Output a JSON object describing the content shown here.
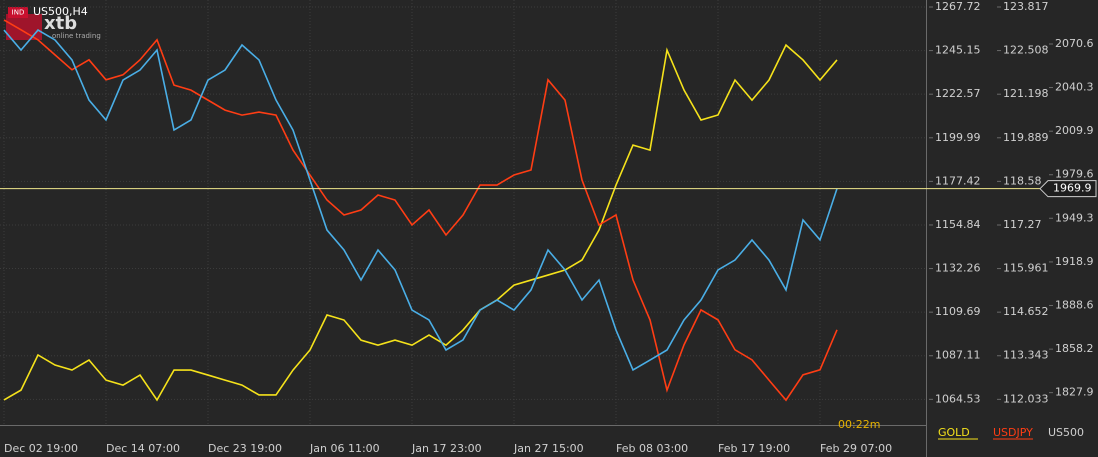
{
  "chart_data": {
    "type": "line",
    "title": "US500,H4",
    "badge": "IND",
    "logo": "xtb",
    "logo_tagline": "online trading",
    "countdown": "00:22m",
    "grid": true,
    "categories": [
      "Dec 02 19:00",
      null,
      null,
      null,
      null,
      null,
      "Dec 14 07:00",
      null,
      null,
      null,
      null,
      null,
      "Dec 23 19:00",
      null,
      null,
      null,
      null,
      null,
      "Jan 06 11:00",
      null,
      null,
      null,
      null,
      null,
      "Jan 17 23:00",
      null,
      null,
      null,
      null,
      null,
      "Jan 27 15:00",
      null,
      null,
      null,
      null,
      null,
      "Feb 08 03:00",
      null,
      null,
      null,
      null,
      null,
      "Feb 17 19:00",
      null,
      null,
      null,
      null,
      null,
      "Feb 29 07:00",
      null
    ],
    "ylim": [
      1051.24,
      1271.35
    ],
    "yticks": [
      1064.53,
      1087.11,
      1109.69,
      1132.26,
      1154.84,
      1177.42,
      1199.99,
      1222.57,
      1245.15,
      1267.72
    ],
    "y2lim": [
      111.263,
      124.027
    ],
    "y2ticks": [
      112.033,
      113.343,
      114.652,
      115.961,
      117.27,
      118.58,
      119.889,
      121.198,
      122.508,
      123.817
    ],
    "y3lim": [
      1805.39,
      2101.23
    ],
    "y3ticks": [
      1827.9,
      1858.2,
      1888.6,
      1918.9,
      1949.3,
      1979.6,
      2009.9,
      2040.3,
      2070.6
    ],
    "last_price": 1969.9,
    "series": [
      {
        "name": "GOLD",
        "color": "#f5e21b",
        "axis": "y",
        "values": [
          1064.2,
          1069.3,
          1087.5,
          1082.3,
          1079.7,
          1084.9,
          1074.5,
          1071.9,
          1077.1,
          1064.2,
          1079.7,
          1079.7,
          1077.1,
          1074.5,
          1071.9,
          1066.8,
          1066.8,
          1079.7,
          1090.1,
          1108.2,
          1105.6,
          1095.2,
          1092.6,
          1095.2,
          1092.6,
          1097.8,
          1092.6,
          1100.4,
          1110.8,
          1116.0,
          1123.7,
          1126.3,
          1128.9,
          1131.5,
          1136.7,
          1152.2,
          1175.5,
          1196.2,
          1193.6,
          1245.4,
          1224.7,
          1209.2,
          1211.8,
          1229.9,
          1219.5,
          1229.9,
          1248.0,
          1240.3,
          1229.9,
          1240.3
        ]
      },
      {
        "name": "USDJPY",
        "color": "#ff3d14",
        "axis": "y2",
        "values": [
          123.43,
          123.13,
          122.83,
          122.38,
          121.93,
          122.23,
          121.63,
          121.78,
          122.23,
          122.83,
          121.47,
          121.32,
          121.02,
          120.72,
          120.57,
          120.66,
          120.57,
          119.52,
          118.77,
          118.02,
          117.57,
          117.72,
          118.17,
          118.02,
          117.27,
          117.72,
          116.97,
          117.57,
          118.47,
          118.47,
          118.77,
          118.92,
          121.63,
          121.02,
          118.62,
          117.27,
          117.57,
          115.62,
          114.42,
          112.31,
          113.67,
          114.72,
          114.42,
          113.52,
          113.22,
          112.61,
          112.01,
          112.77,
          112.92,
          114.12
        ]
      },
      {
        "name": "US500",
        "color": "#4aaee6",
        "axis": "y3",
        "values": [
          2080.3,
          2066.4,
          2080.3,
          2073.4,
          2059.5,
          2031.6,
          2017.7,
          2045.5,
          2052.5,
          2066.4,
          2010.7,
          2017.7,
          2045.5,
          2052.5,
          2069.9,
          2059.5,
          2031.6,
          2010.7,
          1975.9,
          1941.1,
          1927.2,
          1906.3,
          1927.2,
          1913.3,
          1885.4,
          1878.5,
          1857.6,
          1864.6,
          1885.4,
          1892.4,
          1885.4,
          1899.4,
          1927.2,
          1913.3,
          1892.4,
          1906.3,
          1871.5,
          1843.7,
          1850.6,
          1857.6,
          1878.5,
          1892.4,
          1913.3,
          1920.2,
          1934.2,
          1920.2,
          1899.4,
          1948.1,
          1934.2,
          1969.9
        ]
      }
    ]
  }
}
